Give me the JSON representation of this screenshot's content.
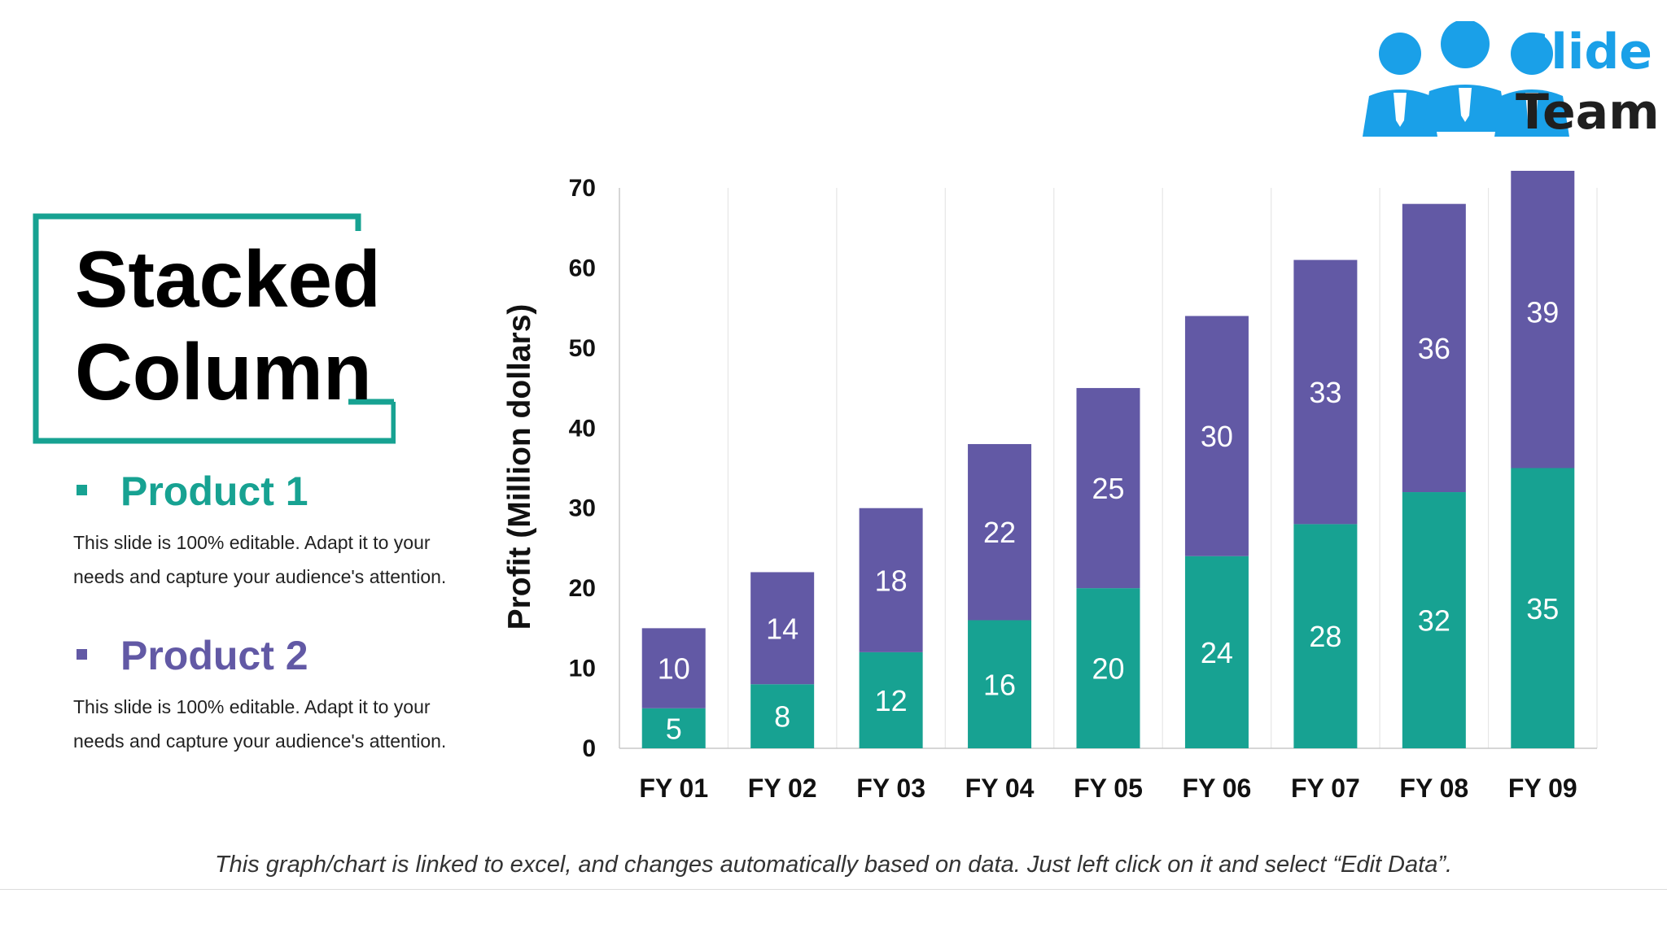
{
  "brand": {
    "name_line1": "Slide",
    "name_line2": "Team"
  },
  "title": {
    "line1": "Stacked",
    "line2": "Column"
  },
  "legend": [
    {
      "title": "Product 1",
      "description": "This slide is 100% editable. Adapt it to your needs and capture your audience's attention."
    },
    {
      "title": "Product 2",
      "description": "This slide is 100% editable. Adapt it to your needs and capture your audience's attention."
    }
  ],
  "footer_note": "This graph/chart is linked to excel, and changes automatically based on data. Just left click on it and select “Edit Data”.",
  "colors": {
    "product1": "#17a292",
    "product2": "#6259a5",
    "title_frame": "#17a292",
    "logo_blue": "#1aa0e8",
    "logo_dark": "#1f1f1f"
  },
  "chart_data": {
    "type": "bar",
    "stacked": true,
    "categories": [
      "FY 01",
      "FY 02",
      "FY 03",
      "FY 04",
      "FY 05",
      "FY 06",
      "FY 07",
      "FY 08",
      "FY 09"
    ],
    "series": [
      {
        "name": "Product 1",
        "values": [
          5,
          8,
          12,
          16,
          20,
          24,
          28,
          32,
          35
        ]
      },
      {
        "name": "Product 2",
        "values": [
          10,
          14,
          18,
          22,
          25,
          30,
          33,
          36,
          39
        ]
      }
    ],
    "ylabel": "Profit  (Million dollars)",
    "xlabel": "",
    "ylim": [
      0,
      70
    ],
    "yticks": [
      0,
      10,
      20,
      30,
      40,
      50,
      60,
      70
    ],
    "grid": "vertical",
    "data_labels": true
  }
}
